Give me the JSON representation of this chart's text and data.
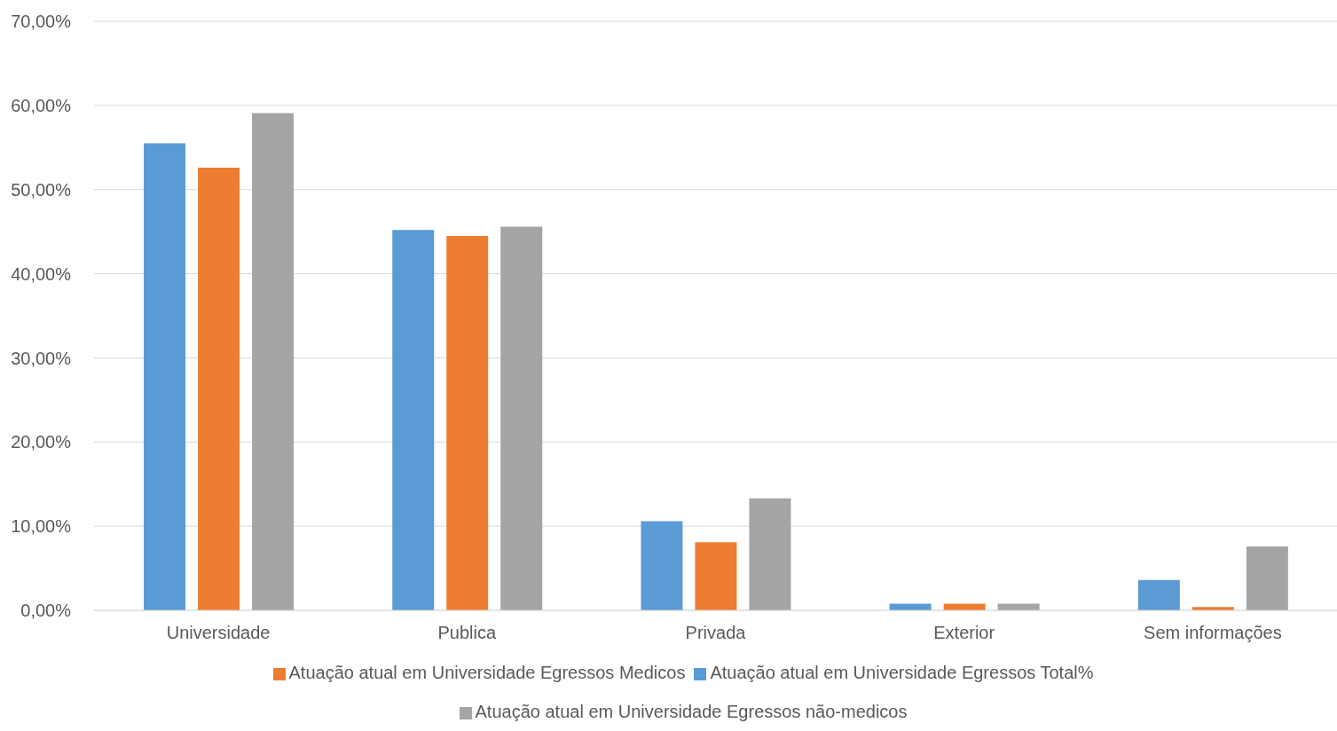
{
  "chart_data": {
    "type": "bar",
    "categories": [
      "Universidade",
      "Publica",
      "Privada",
      "Exterior",
      "Sem informações"
    ],
    "series": [
      {
        "name": "Atuação atual em Universidade Egressos Total%",
        "color": "#5b9bd5",
        "values": [
          55.5,
          45.2,
          10.6,
          0.8,
          3.6
        ]
      },
      {
        "name": "Atuação atual em Universidade Egressos Medicos",
        "color": "#ed7d31",
        "values": [
          52.6,
          44.5,
          8.1,
          0.8,
          0.4
        ]
      },
      {
        "name": "Atuação atual em Universidade Egressos não-medicos",
        "color": "#a5a5a5",
        "values": [
          59.1,
          45.6,
          13.3,
          0.8,
          7.6
        ]
      }
    ],
    "ylim": [
      0,
      70
    ],
    "yticks": [
      {
        "value": 0,
        "label": "0,00%"
      },
      {
        "value": 10,
        "label": "10,00%"
      },
      {
        "value": 20,
        "label": "20,00%"
      },
      {
        "value": 30,
        "label": "30,00%"
      },
      {
        "value": 40,
        "label": "40,00%"
      },
      {
        "value": 50,
        "label": "50,00%"
      },
      {
        "value": 60,
        "label": "60,00%"
      },
      {
        "value": 70,
        "label": "70,00%"
      }
    ],
    "grid": "y",
    "legend": "bottom"
  }
}
